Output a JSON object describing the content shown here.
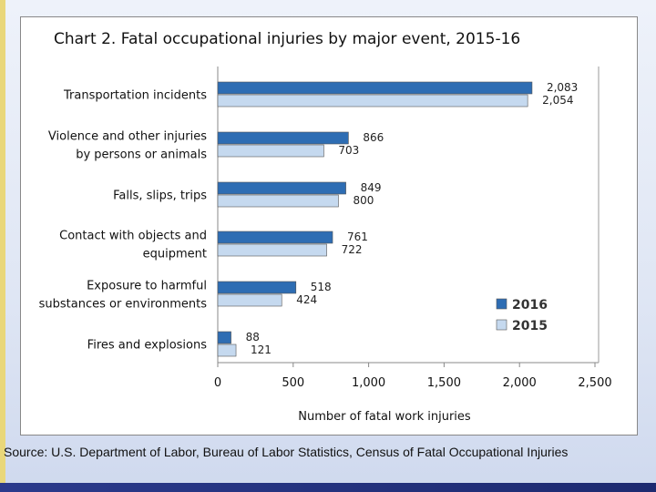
{
  "source_note": "Source: U.S. Department of Labor, Bureau of Labor Statistics, Census of Fatal Occupational Injuries",
  "colors": {
    "series_2016": "#2e6db3",
    "series_2015": "#c5d9ef",
    "bar_outline": "#555555"
  },
  "chart_data": {
    "type": "bar",
    "orientation": "horizontal",
    "title": "Chart 2. Fatal occupational injuries by major event, 2015-16",
    "xlabel": "Number of fatal work injuries",
    "ylabel": "",
    "xlim": [
      0,
      2500
    ],
    "xticks": [
      "0",
      "500",
      "1,000",
      "1,500",
      "2,000",
      "2,500"
    ],
    "grid": false,
    "legend_position": "bottom-right",
    "categories": [
      [
        "Transportation incidents"
      ],
      [
        "Violence and other injuries",
        "by persons or animals"
      ],
      [
        "Falls, slips, trips"
      ],
      [
        "Contact with objects and",
        "equipment"
      ],
      [
        "Exposure to harmful",
        "substances or environments"
      ],
      [
        "Fires and explosions"
      ]
    ],
    "series": [
      {
        "name": "2016",
        "values": [
          2083,
          866,
          849,
          761,
          518,
          88
        ],
        "labels": [
          "2,083",
          "866",
          "849",
          "761",
          "518",
          "88"
        ]
      },
      {
        "name": "2015",
        "values": [
          2054,
          703,
          800,
          722,
          424,
          121
        ],
        "labels": [
          "2,054",
          "703",
          "800",
          "722",
          "424",
          "121"
        ]
      }
    ]
  }
}
